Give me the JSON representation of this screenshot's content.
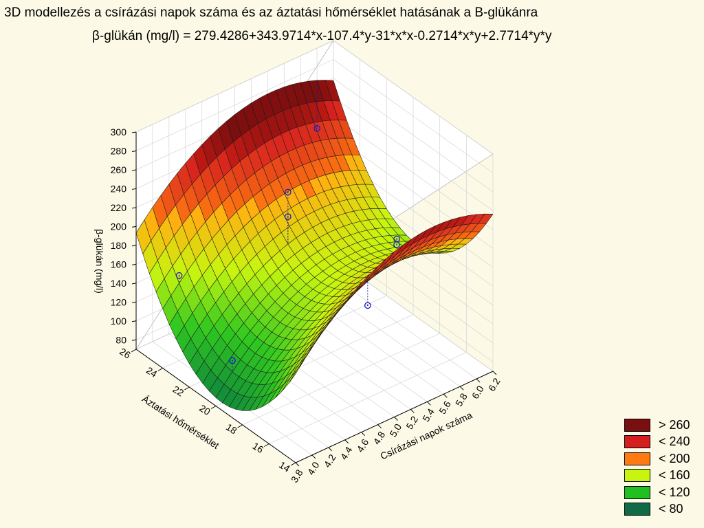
{
  "chart_data": {
    "type": "surface",
    "title": "3D modellezés a  csírázási napok száma és az áztatási hőmérséklet hatásának a B-glükánra",
    "subtitle": "β-glükán (mg/l) = 279.4286+343.9714*x-107.4*y-31*x*x-0.2714*x*y+2.7714*y*y",
    "xlabel": "Csírázási napok száma",
    "ylabel": "Áztatási hőmérséklet",
    "zlabel": "β-glükán (mg/l)",
    "xlim": [
      3.8,
      6.2
    ],
    "ylim": [
      14,
      26
    ],
    "zlim": [
      70,
      300
    ],
    "xticks": [
      "3.8",
      "4.0",
      "4.2",
      "4.4",
      "4.6",
      "4.8",
      "5.0",
      "5.2",
      "5.4",
      "5.6",
      "5.8",
      "6.0",
      "6.2"
    ],
    "yticks": [
      "14",
      "16",
      "18",
      "20",
      "22",
      "24",
      "26"
    ],
    "zticks": [
      "80",
      "100",
      "120",
      "140",
      "160",
      "180",
      "200",
      "220",
      "240",
      "260",
      "280",
      "300"
    ],
    "coefficients": {
      "c": 279.4286,
      "x": 343.9714,
      "y": -107.4,
      "xx": -31,
      "xy": -0.2714,
      "yy": 2.7714
    },
    "legend": [
      {
        "label": "> 260",
        "color": "#7a0f0f"
      },
      {
        "label": "< 240",
        "color": "#d51f1f"
      },
      {
        "label": "< 200",
        "color": "#ff7a10"
      },
      {
        "label": "< 160",
        "color": "#c8f510"
      },
      {
        "label": "< 120",
        "color": "#20c020"
      },
      {
        "label": "< 80",
        "color": "#0e6b45"
      }
    ],
    "observed_points": [
      {
        "x": 4.0,
        "y": 24,
        "z": 160
      },
      {
        "x": 4.0,
        "y": 20,
        "z": 110
      },
      {
        "x": 5.0,
        "y": 22,
        "z": 228
      },
      {
        "x": 5.0,
        "y": 22,
        "z": 202
      },
      {
        "x": 5.0,
        "y": 16,
        "z": 168
      },
      {
        "x": 6.0,
        "y": 26,
        "z": 215
      },
      {
        "x": 6.0,
        "y": 20,
        "z": 158
      },
      {
        "x": 6.0,
        "y": 20,
        "z": 152
      }
    ]
  }
}
